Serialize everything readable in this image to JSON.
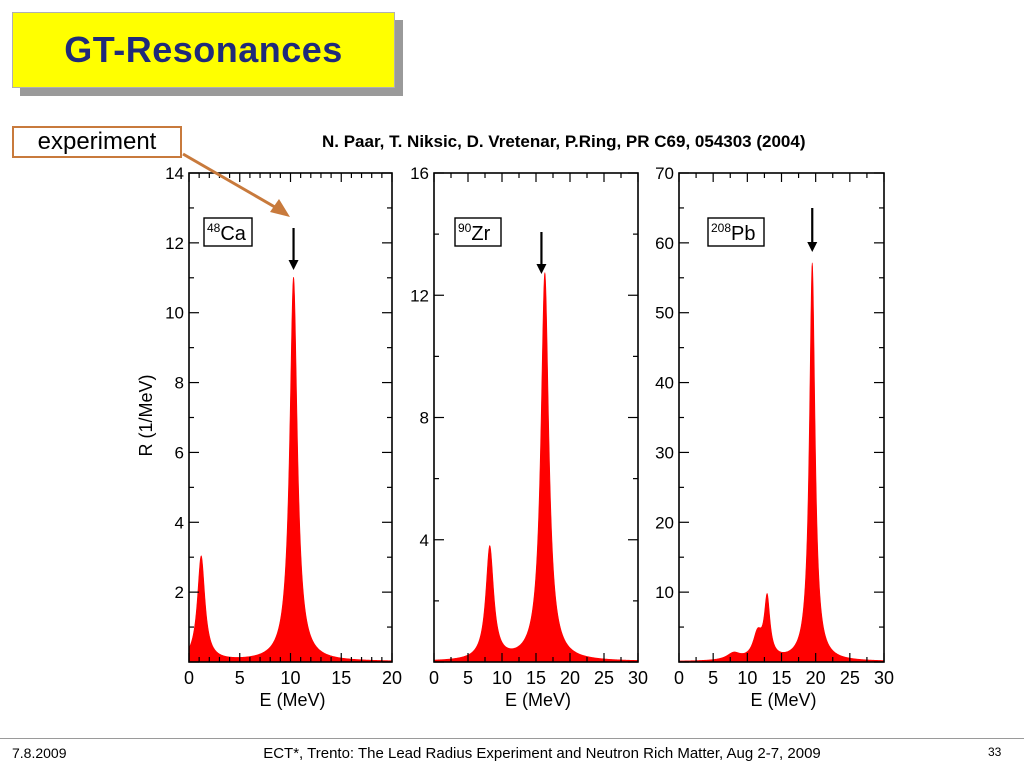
{
  "slide": {
    "title": "GT-Resonances",
    "experiment_label": "experiment",
    "citation": "N. Paar, T. Niksic, D. Vretenar, P.Ring, PR C69, 054303 (2004)"
  },
  "footer": {
    "date": "7.8.2009",
    "center": "ECT*, Trento: The Lead Radius Experiment and Neutron Rich Matter, Aug 2-7, 2009",
    "page": "33"
  },
  "colors": {
    "title_bg": "#ffff00",
    "title_text": "#1f2a7a",
    "fill": "#ff0000",
    "arrow_annotation": "#c87a3c"
  },
  "chart_data": [
    {
      "type": "area",
      "nucleus": {
        "mass": "48",
        "element": "Ca"
      },
      "xlabel": "E (MeV)",
      "ylabel": "R (1/MeV)",
      "xlim": [
        0,
        20
      ],
      "ylim": [
        0,
        14
      ],
      "xticks": [
        0,
        5,
        10,
        15,
        20
      ],
      "yticks": [
        2,
        4,
        6,
        8,
        10,
        12,
        14
      ],
      "peaks": [
        {
          "E": 1.2,
          "R": 3.0,
          "width": 0.45
        },
        {
          "E": 10.3,
          "R": 11.0,
          "width": 0.45
        }
      ],
      "arrow_E": 10.3
    },
    {
      "type": "area",
      "nucleus": {
        "mass": "90",
        "element": "Zr"
      },
      "xlabel": "E (MeV)",
      "ylabel": "",
      "xlim": [
        0,
        30
      ],
      "ylim": [
        0,
        16
      ],
      "xticks": [
        0,
        5,
        10,
        15,
        20,
        25,
        30
      ],
      "yticks": [
        4,
        8,
        12,
        16
      ],
      "peaks": [
        {
          "E": 8.2,
          "R": 3.7,
          "width": 0.7
        },
        {
          "E": 16.3,
          "R": 12.7,
          "width": 0.7
        }
      ],
      "arrow_E": 15.8
    },
    {
      "type": "area",
      "nucleus": {
        "mass": "208",
        "element": "Pb"
      },
      "xlabel": "E (MeV)",
      "ylabel": "",
      "xlim": [
        0,
        30
      ],
      "ylim": [
        0,
        70
      ],
      "xticks": [
        0,
        5,
        10,
        15,
        20,
        25,
        30
      ],
      "yticks": [
        10,
        20,
        30,
        40,
        50,
        60,
        70
      ],
      "peaks": [
        {
          "E": 12.9,
          "R": 8.5,
          "width": 0.5
        },
        {
          "E": 11.5,
          "R": 3.5,
          "width": 0.8
        },
        {
          "E": 8.0,
          "R": 1.0,
          "width": 1.2
        },
        {
          "E": 19.5,
          "R": 57.0,
          "width": 0.5
        }
      ],
      "arrow_E": 19.5
    }
  ]
}
